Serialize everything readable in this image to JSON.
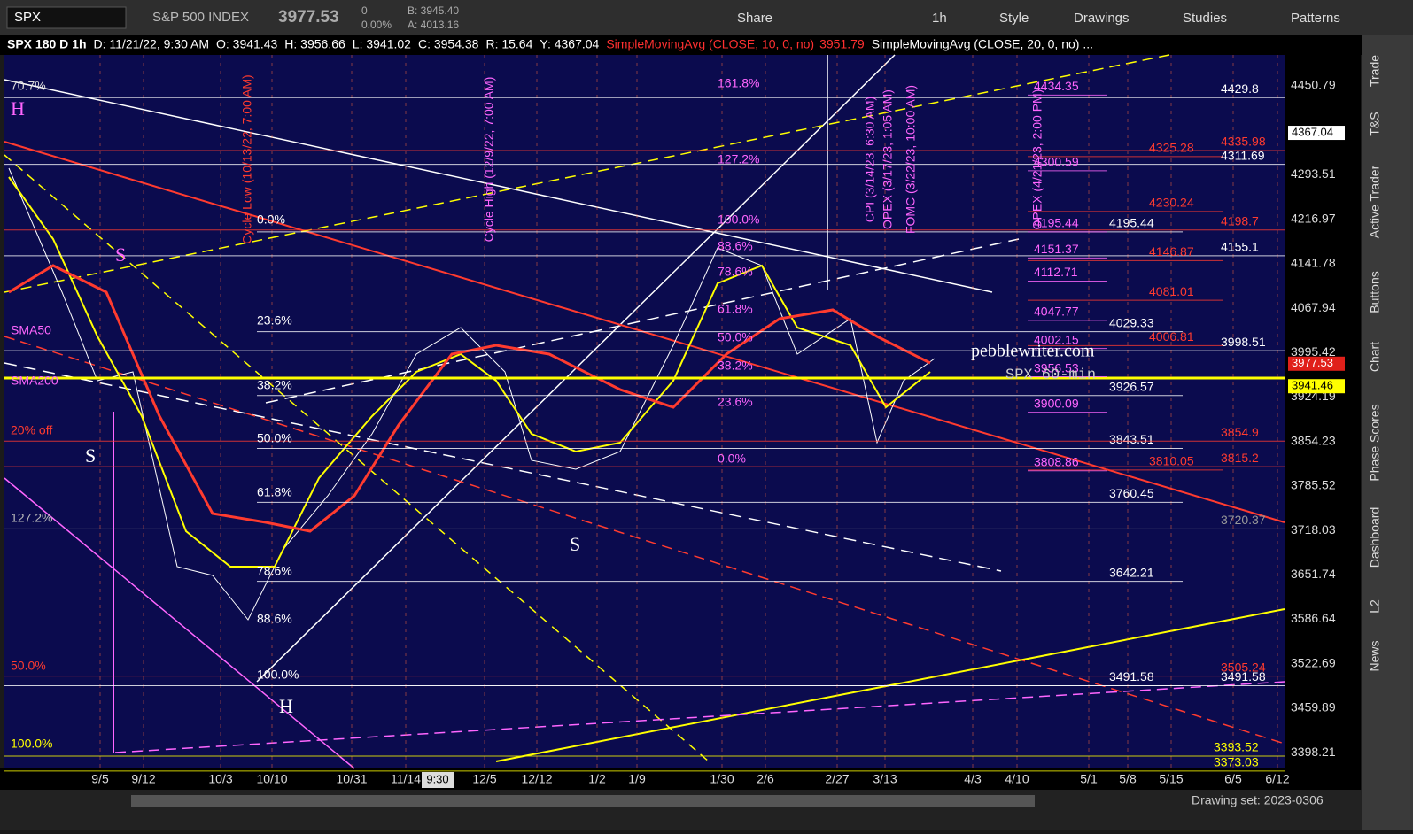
{
  "toolbar": {
    "symbol": "SPX",
    "description": "S&P 500 INDEX",
    "last": "3977.53",
    "change": "0",
    "change_pct": "0.00%",
    "bid": "B: 3945.40",
    "ask": "A: 4013.16",
    "buttons": [
      "Share",
      "1h",
      "Style",
      "Drawings",
      "Studies",
      "Patterns"
    ]
  },
  "info_bar": [
    "SPX 180 D 1h",
    "D: 11/21/22, 9:30 AM",
    "O: 3941.43",
    "H: 3956.66",
    "L: 3941.02",
    "C: 3954.38",
    "R: 15.64",
    "Y: 4367.04"
  ],
  "studies": [
    {
      "label": "SimpleMovingAvg (CLOSE, 10, 0, no)",
      "value": "3951.79",
      "color": "#ff3030"
    },
    {
      "label": "SimpleMovingAvg (CLOSE, 20, 0, no) ...",
      "color": "#ffffff"
    }
  ],
  "price_axis": {
    "log": true,
    "ylim": [
      3356,
      4507
    ],
    "yticks": [
      4450.79,
      4293.51,
      4216.97,
      4141.78,
      4067.94,
      3995.42,
      3924.19,
      3854.23,
      3785.52,
      3718.03,
      3651.74,
      3586.64,
      3522.69,
      3459.89,
      3398.21
    ],
    "badges": [
      {
        "value": 4367.04,
        "color": "#ffffff"
      },
      {
        "value": 3977.53,
        "color": "#e0201a"
      },
      {
        "value": 3941.46,
        "color": "#ffff00"
      }
    ]
  },
  "date_axis": [
    "9/5",
    "9/12",
    "10/3",
    "10/10",
    "10/31",
    "11/14",
    "12/5",
    "12/12",
    "1/2",
    "1/9",
    "1/30",
    "2/6",
    "2/27",
    "3/13",
    "4/3",
    "4/10",
    "5/1",
    "5/8",
    "5/15",
    "6/5",
    "6/12"
  ],
  "crosshair_label": "9:30",
  "level_groups": [
    {
      "color": "#ffffff",
      "levels": [
        4195.44,
        4029.33,
        3926.57,
        3843.51,
        3760.45,
        3642.21,
        3491.58
      ]
    },
    {
      "color": "#ffffff",
      "levels": [
        4429.8,
        4311.69,
        4155.1,
        3998.51,
        3491.58
      ]
    },
    {
      "color": "#ff66ff",
      "levels": [
        4434.35,
        4300.59,
        4195.44,
        4151.37,
        4112.71,
        4047.77,
        4002.15,
        3956.53,
        3900.09,
        3808.86
      ]
    },
    {
      "color": "#ff3b2f",
      "levels": [
        4325.28,
        4230.24,
        4146.87,
        4081.01,
        4006.81,
        3810.05
      ]
    },
    {
      "color": "#ff3b2f",
      "levels": [
        4335.98,
        4198.7,
        3854.9,
        3815.2,
        3505.24
      ]
    },
    {
      "color": "#ffff00",
      "levels": [
        3393.52,
        3373.03
      ]
    },
    {
      "color": "#999999",
      "levels": [
        3720.37
      ]
    }
  ],
  "fib_left": [
    "0.0%",
    "23.6%",
    "38.2%",
    "50.0%",
    "61.8%",
    "78.6%",
    "88.6%",
    "100.0%"
  ],
  "fib_mid": [
    "161.8%",
    "127.2%",
    "100.0%",
    "88.6%",
    "78.6%",
    "61.8%",
    "50.0%",
    "38.2%",
    "23.6%",
    "0.0%"
  ],
  "fib_edge": [
    "70.7%",
    "127.2%",
    "50.0%",
    "100.0%",
    "20% off",
    "SMA50",
    "SMA200"
  ],
  "event_labels": [
    "Cycle Low (10/13/22, 7:00 AM)",
    "Cycle High (12/9/22, 7:00 AM)",
    "CPI (3/14/23, 6:30 AM)",
    "OPEX (3/17/23, 1:05 AM)",
    "FOMC (3/22/23, 10:00 AM)",
    "OPEX (4/21/23, 2:00 PM)"
  ],
  "pattern_labels": [
    "H",
    "S",
    "S",
    "S",
    "H"
  ],
  "watermark": [
    "pebblewriter.com",
    "SPX 60-min"
  ],
  "side_tabs": [
    "Trade",
    "T&S",
    "Active Trader",
    "Buttons",
    "Chart",
    "Phase Scores",
    "Dashboard",
    "L2",
    "News"
  ],
  "footer": "Drawing set: 2023-0306"
}
